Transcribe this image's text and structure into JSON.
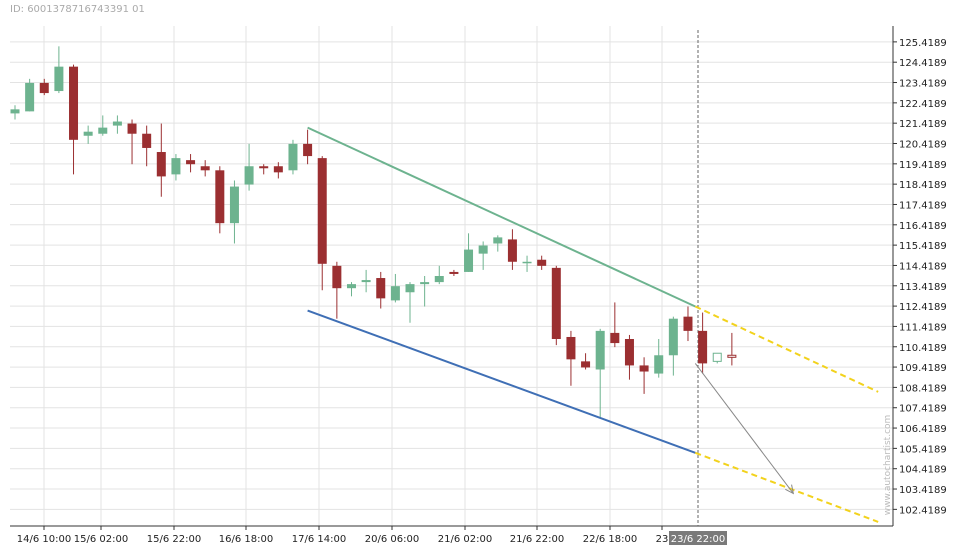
{
  "id_label": "ID: 6001378716743391 01",
  "watermark": "www.autochartist.com",
  "chart_data": {
    "type": "candlestick",
    "title": "",
    "xlabel": "",
    "ylabel": "",
    "y_ticks": [
      "125.4189",
      "124.4189",
      "123.4189",
      "122.4189",
      "121.4189",
      "120.4189",
      "119.4189",
      "118.4189",
      "117.4189",
      "116.4189",
      "115.4189",
      "114.4189",
      "113.4189",
      "112.4189",
      "111.4189",
      "110.4189",
      "109.4189",
      "108.4189",
      "107.4189",
      "106.4189",
      "105.4189",
      "104.4189",
      "103.4189",
      "102.4189"
    ],
    "x_ticks": [
      "14/6 10:00",
      "15/6 02:00",
      "15/6 22:00",
      "16/6 18:00",
      "17/6 14:00",
      "20/6 06:00",
      "21/6 02:00",
      "21/6 22:00",
      "22/6 18:00",
      "23"
    ],
    "highlight_label": "23/6 22:00",
    "ylim": [
      101.6,
      126.2
    ],
    "grid": true,
    "colors": {
      "up": "#6db38f",
      "down": "#9b2f31",
      "upper_trend": "#6db38f",
      "lower_trend": "#3f6fb5",
      "projection": "#f2d21c",
      "arrow": "#888888",
      "grid": "#e3e3e3",
      "highlight_bg": "#7a7a7a"
    },
    "candles": [
      {
        "o": 121.9,
        "h": 122.3,
        "l": 121.6,
        "c": 122.1
      },
      {
        "o": 122.0,
        "h": 123.6,
        "l": 122.0,
        "c": 123.4
      },
      {
        "o": 123.4,
        "h": 123.6,
        "l": 122.8,
        "c": 122.9
      },
      {
        "o": 123.0,
        "h": 125.2,
        "l": 122.9,
        "c": 124.2
      },
      {
        "o": 124.2,
        "h": 124.3,
        "l": 118.9,
        "c": 120.6
      },
      {
        "o": 120.8,
        "h": 121.3,
        "l": 120.4,
        "c": 121.0
      },
      {
        "o": 120.9,
        "h": 121.8,
        "l": 120.8,
        "c": 121.2
      },
      {
        "o": 121.3,
        "h": 121.8,
        "l": 120.9,
        "c": 121.5
      },
      {
        "o": 121.4,
        "h": 121.6,
        "l": 119.4,
        "c": 120.9
      },
      {
        "o": 120.9,
        "h": 121.3,
        "l": 119.3,
        "c": 120.2
      },
      {
        "o": 120.0,
        "h": 121.4,
        "l": 117.8,
        "c": 118.8
      },
      {
        "o": 118.9,
        "h": 119.9,
        "l": 118.6,
        "c": 119.7
      },
      {
        "o": 119.6,
        "h": 119.9,
        "l": 119.0,
        "c": 119.4
      },
      {
        "o": 119.3,
        "h": 119.6,
        "l": 118.8,
        "c": 119.1
      },
      {
        "o": 119.1,
        "h": 119.3,
        "l": 116.0,
        "c": 116.5
      },
      {
        "o": 116.5,
        "h": 118.6,
        "l": 115.5,
        "c": 118.3
      },
      {
        "o": 118.4,
        "h": 120.4,
        "l": 118.1,
        "c": 119.3
      },
      {
        "o": 119.3,
        "h": 119.4,
        "l": 118.9,
        "c": 119.2
      },
      {
        "o": 119.3,
        "h": 119.5,
        "l": 118.7,
        "c": 119.0
      },
      {
        "o": 119.1,
        "h": 120.6,
        "l": 118.9,
        "c": 120.4
      },
      {
        "o": 120.4,
        "h": 121.1,
        "l": 119.4,
        "c": 119.8
      },
      {
        "o": 119.7,
        "h": 119.8,
        "l": 113.2,
        "c": 114.5
      },
      {
        "o": 114.4,
        "h": 114.6,
        "l": 111.8,
        "c": 113.3
      },
      {
        "o": 113.3,
        "h": 113.6,
        "l": 112.9,
        "c": 113.5
      },
      {
        "o": 113.6,
        "h": 114.2,
        "l": 113.1,
        "c": 113.7
      },
      {
        "o": 113.8,
        "h": 114.1,
        "l": 112.3,
        "c": 112.8
      },
      {
        "o": 112.7,
        "h": 114.0,
        "l": 112.6,
        "c": 113.4
      },
      {
        "o": 113.1,
        "h": 113.6,
        "l": 111.6,
        "c": 113.5
      },
      {
        "o": 113.5,
        "h": 113.9,
        "l": 112.4,
        "c": 113.6
      },
      {
        "o": 113.6,
        "h": 114.4,
        "l": 113.5,
        "c": 113.9
      },
      {
        "o": 114.1,
        "h": 114.2,
        "l": 113.9,
        "c": 114.0
      },
      {
        "o": 114.1,
        "h": 116.0,
        "l": 114.1,
        "c": 115.2
      },
      {
        "o": 115.0,
        "h": 115.6,
        "l": 114.2,
        "c": 115.4
      },
      {
        "o": 115.5,
        "h": 115.9,
        "l": 115.1,
        "c": 115.8
      },
      {
        "o": 115.7,
        "h": 116.2,
        "l": 114.2,
        "c": 114.6
      },
      {
        "o": 114.6,
        "h": 114.9,
        "l": 114.1,
        "c": 114.6
      },
      {
        "o": 114.7,
        "h": 114.9,
        "l": 114.2,
        "c": 114.4
      },
      {
        "o": 114.3,
        "h": 114.4,
        "l": 110.5,
        "c": 110.8
      },
      {
        "o": 110.9,
        "h": 111.2,
        "l": 108.5,
        "c": 109.8
      },
      {
        "o": 109.7,
        "h": 110.1,
        "l": 109.3,
        "c": 109.4
      },
      {
        "o": 109.3,
        "h": 111.3,
        "l": 106.9,
        "c": 111.2
      },
      {
        "o": 111.1,
        "h": 112.6,
        "l": 110.4,
        "c": 110.6
      },
      {
        "o": 110.8,
        "h": 111.0,
        "l": 108.8,
        "c": 109.5
      },
      {
        "o": 109.5,
        "h": 109.9,
        "l": 108.1,
        "c": 109.2
      },
      {
        "o": 109.1,
        "h": 110.8,
        "l": 108.9,
        "c": 110.0
      },
      {
        "o": 110.0,
        "h": 111.9,
        "l": 109.0,
        "c": 111.8
      },
      {
        "o": 111.9,
        "h": 112.4,
        "l": 110.7,
        "c": 111.2
      },
      {
        "o": 111.2,
        "h": 112.1,
        "l": 109.1,
        "c": 109.6
      },
      {
        "o": 109.7,
        "h": 110.1,
        "l": 109.6,
        "c": 110.1
      },
      {
        "o": 110.0,
        "h": 111.1,
        "l": 109.5,
        "c": 109.9
      }
    ],
    "trendlines": {
      "upper": [
        {
          "i": 20,
          "v": 121.2
        },
        {
          "i": 46.5,
          "v": 112.4
        }
      ],
      "lower": [
        {
          "i": 20,
          "v": 112.2
        },
        {
          "i": 46.5,
          "v": 105.2
        }
      ],
      "upper_projection": [
        {
          "i": 46.5,
          "v": 112.4
        },
        {
          "i": 59,
          "v": 108.2
        }
      ],
      "lower_projection": [
        {
          "i": 46.5,
          "v": 105.2
        },
        {
          "i": 59,
          "v": 101.8
        }
      ],
      "arrow": [
        {
          "i": 46.5,
          "v": 109.6
        },
        {
          "i": 53.2,
          "v": 103.2
        }
      ]
    }
  }
}
